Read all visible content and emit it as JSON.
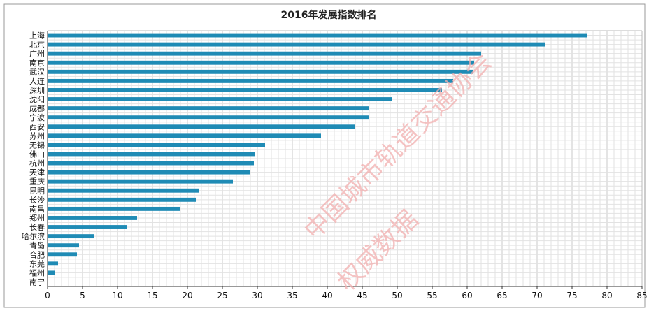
{
  "chart_data": {
    "type": "bar",
    "orientation": "horizontal",
    "title": "2016年发展指数排名",
    "xlabel": "",
    "ylabel": "",
    "xlim": [
      0,
      85
    ],
    "x_ticks": [
      0,
      5,
      10,
      15,
      20,
      25,
      30,
      35,
      40,
      45,
      50,
      55,
      60,
      65,
      70,
      75,
      80,
      85
    ],
    "grid": true,
    "bar_color": "#1f8bb5",
    "categories": [
      "上海",
      "北京",
      "广州",
      "南京",
      "武汉",
      "大连",
      "深圳",
      "沈阳",
      "成都",
      "宁波",
      "西安",
      "苏州",
      "无锡",
      "佛山",
      "杭州",
      "天津",
      "重庆",
      "昆明",
      "长沙",
      "南昌",
      "郑州",
      "长春",
      "哈尔滨",
      "青岛",
      "合肥",
      "东莞",
      "福州",
      "南宁"
    ],
    "values": [
      77.2,
      71.2,
      62.0,
      61.0,
      60.8,
      58.0,
      56.4,
      49.3,
      46.0,
      46.0,
      43.9,
      39.1,
      31.1,
      29.6,
      29.5,
      28.9,
      26.5,
      21.7,
      21.2,
      18.9,
      12.8,
      11.3,
      6.6,
      4.5,
      4.2,
      1.5,
      1.1,
      0.0
    ]
  },
  "watermark": {
    "line1": "中国城市轨道交通协会",
    "line2": "权威数据",
    "color": "#f2b0b0"
  }
}
